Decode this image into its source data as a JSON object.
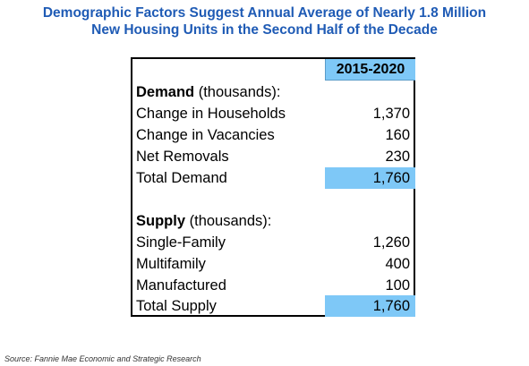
{
  "title_lines": [
    "Demographic Factors Suggest Annual Average of Nearly 1.8 Million",
    "New Housing Units in the Second Half of the Decade"
  ],
  "chart_data": {
    "type": "table",
    "column_header": "2015-2020",
    "demand": {
      "heading": "Demand",
      "unit": "(thousands):",
      "rows": [
        {
          "label": "Change in Households",
          "value": "1,370"
        },
        {
          "label": "Change in Vacancies",
          "value": "160"
        },
        {
          "label": "Net Removals",
          "value": "230"
        }
      ],
      "total": {
        "label": "Total Demand",
        "value": "1,760"
      }
    },
    "supply": {
      "heading": "Supply",
      "unit": "(thousands):",
      "rows": [
        {
          "label": "Single-Family",
          "value": "1,260"
        },
        {
          "label": "Multifamily",
          "value": "400"
        },
        {
          "label": "Manufactured",
          "value": "100"
        }
      ],
      "total": {
        "label": "Total Supply",
        "value": "1,760"
      }
    }
  },
  "source": "Source: Fannie Mae Economic and Strategic Research",
  "colors": {
    "title": "#1f5bb5",
    "highlight": "#7ec8f7"
  }
}
